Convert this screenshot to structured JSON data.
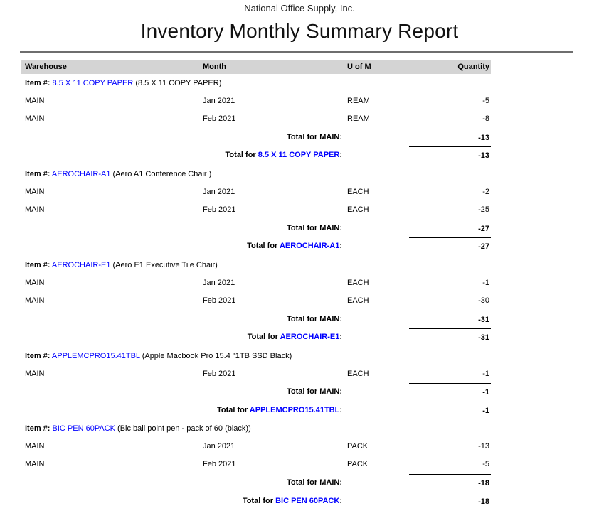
{
  "report": {
    "company": "National Office Supply, Inc.",
    "title": "Inventory Monthly Summary Report",
    "columns": [
      "Warehouse",
      "Month",
      "U of M",
      "Quantity"
    ],
    "item_label": "Item #:",
    "total_for_label": "Total for",
    "total_suffix": ":",
    "items": [
      {
        "code": "8.5 X 11 COPY PAPER",
        "description": "(8.5 X 11 COPY PAPER)",
        "rows": [
          {
            "warehouse": "MAIN",
            "month": "Jan 2021",
            "uom": "REAM",
            "quantity": "-5"
          },
          {
            "warehouse": "MAIN",
            "month": "Feb 2021",
            "uom": "REAM",
            "quantity": "-8"
          }
        ],
        "warehouse_total": {
          "label": "Total for MAIN:",
          "quantity": "-13"
        },
        "item_total": {
          "quantity": "-13"
        }
      },
      {
        "code": "AEROCHAIR-A1",
        "description": "(Aero A1 Conference Chair )",
        "rows": [
          {
            "warehouse": "MAIN",
            "month": "Jan 2021",
            "uom": "EACH",
            "quantity": "-2"
          },
          {
            "warehouse": "MAIN",
            "month": "Feb 2021",
            "uom": "EACH",
            "quantity": "-25"
          }
        ],
        "warehouse_total": {
          "label": "Total for MAIN:",
          "quantity": "-27"
        },
        "item_total": {
          "quantity": "-27"
        }
      },
      {
        "code": "AEROCHAIR-E1",
        "description": "(Aero E1 Executive Tile Chair)",
        "rows": [
          {
            "warehouse": "MAIN",
            "month": "Jan 2021",
            "uom": "EACH",
            "quantity": "-1"
          },
          {
            "warehouse": "MAIN",
            "month": "Feb 2021",
            "uom": "EACH",
            "quantity": "-30"
          }
        ],
        "warehouse_total": {
          "label": "Total for MAIN:",
          "quantity": "-31"
        },
        "item_total": {
          "quantity": "-31"
        }
      },
      {
        "code": "APPLEMCPRO15.41TBL",
        "description": "(Apple Macbook Pro 15.4 \"1TB SSD Black)",
        "rows": [
          {
            "warehouse": "MAIN",
            "month": "Feb 2021",
            "uom": "EACH",
            "quantity": "-1"
          }
        ],
        "warehouse_total": {
          "label": "Total for MAIN:",
          "quantity": "-1"
        },
        "item_total": {
          "quantity": "-1"
        }
      },
      {
        "code": "BIC PEN 60PACK",
        "description": "(Bic ball point pen - pack of 60 (black))",
        "rows": [
          {
            "warehouse": "MAIN",
            "month": "Jan 2021",
            "uom": "PACK",
            "quantity": "-13"
          },
          {
            "warehouse": "MAIN",
            "month": "Feb 2021",
            "uom": "PACK",
            "quantity": "-5"
          }
        ],
        "warehouse_total": {
          "label": "Total for MAIN:",
          "quantity": "-18"
        },
        "item_total": {
          "quantity": "-18"
        }
      }
    ]
  },
  "colors": {
    "link_blue": "#0000FF",
    "header_bg": "#D4D4D4",
    "total_rule": "#000000",
    "divider_dark": "#6E6E6E",
    "divider_light": "#9A9A9A"
  }
}
